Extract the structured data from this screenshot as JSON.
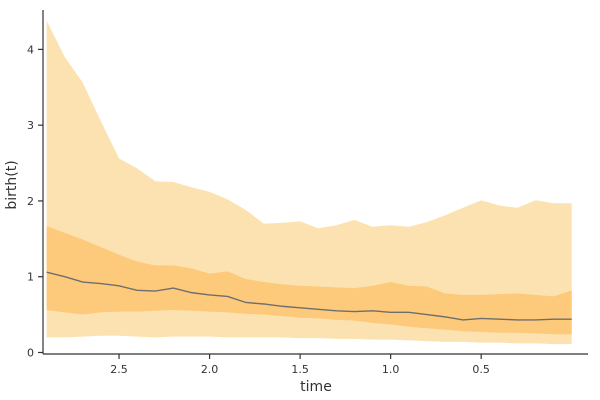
{
  "chart_data": {
    "type": "area",
    "xlabel": "time",
    "ylabel": "birth(t)",
    "xlim": [
      2.92,
      -0.09
    ],
    "ylim": [
      -0.02,
      4.52
    ],
    "x_reversed": true,
    "grid": false,
    "x_ticks": [
      2.5,
      2.0,
      1.5,
      1.0,
      0.5
    ],
    "x_tick_labels": [
      "2.5",
      "2.0",
      "1.5",
      "1.0",
      "0.5"
    ],
    "y_ticks": [
      0,
      1,
      2,
      3,
      4
    ],
    "y_tick_labels": [
      "0",
      "1",
      "2",
      "3",
      "4"
    ],
    "x": [
      2.9,
      2.8,
      2.7,
      2.6,
      2.5,
      2.4,
      2.3,
      2.2,
      2.1,
      2.0,
      1.9,
      1.8,
      1.7,
      1.6,
      1.5,
      1.4,
      1.3,
      1.2,
      1.1,
      1.0,
      0.9,
      0.8,
      0.7,
      0.6,
      0.5,
      0.4,
      0.3,
      0.2,
      0.1,
      0.0
    ],
    "series": [
      {
        "role": "outer-band",
        "color": "#fde2b1",
        "lower": [
          0.2,
          0.2,
          0.21,
          0.22,
          0.22,
          0.21,
          0.2,
          0.21,
          0.21,
          0.21,
          0.2,
          0.2,
          0.2,
          0.2,
          0.19,
          0.19,
          0.18,
          0.18,
          0.17,
          0.17,
          0.16,
          0.15,
          0.14,
          0.14,
          0.13,
          0.13,
          0.12,
          0.12,
          0.11,
          0.11
        ],
        "upper": [
          4.38,
          3.9,
          3.56,
          3.05,
          2.56,
          2.43,
          2.26,
          2.25,
          2.18,
          2.12,
          2.02,
          1.88,
          1.7,
          1.71,
          1.73,
          1.64,
          1.68,
          1.75,
          1.66,
          1.68,
          1.66,
          1.72,
          1.81,
          1.91,
          2.01,
          1.94,
          1.91,
          2.01,
          1.97,
          1.97
        ]
      },
      {
        "role": "inner-band",
        "color": "#fdca7c",
        "lower": [
          0.56,
          0.53,
          0.5,
          0.53,
          0.54,
          0.54,
          0.55,
          0.56,
          0.55,
          0.54,
          0.53,
          0.51,
          0.5,
          0.48,
          0.46,
          0.45,
          0.43,
          0.42,
          0.39,
          0.37,
          0.34,
          0.32,
          0.3,
          0.28,
          0.27,
          0.26,
          0.26,
          0.25,
          0.24,
          0.24
        ],
        "upper": [
          1.67,
          1.58,
          1.49,
          1.39,
          1.29,
          1.2,
          1.15,
          1.15,
          1.11,
          1.04,
          1.07,
          0.97,
          0.93,
          0.9,
          0.88,
          0.87,
          0.86,
          0.85,
          0.88,
          0.93,
          0.88,
          0.87,
          0.78,
          0.76,
          0.76,
          0.77,
          0.78,
          0.76,
          0.74,
          0.82
        ]
      },
      {
        "role": "median-line",
        "color": "#6e6e6e",
        "values": [
          1.06,
          1.0,
          0.93,
          0.91,
          0.88,
          0.82,
          0.81,
          0.85,
          0.79,
          0.76,
          0.74,
          0.66,
          0.64,
          0.61,
          0.59,
          0.57,
          0.55,
          0.54,
          0.55,
          0.53,
          0.53,
          0.5,
          0.47,
          0.43,
          0.45,
          0.44,
          0.43,
          0.43,
          0.44,
          0.44
        ]
      }
    ]
  }
}
